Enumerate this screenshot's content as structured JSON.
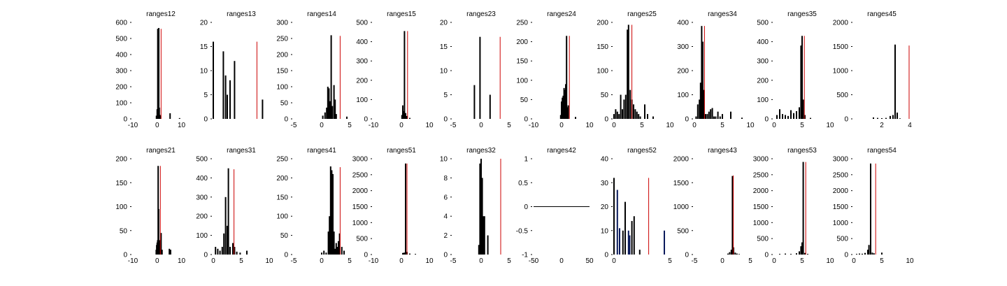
{
  "colors": {
    "bars": "#000000",
    "bars_alt": "#0a1a5c",
    "marker": "#cc0000",
    "axis": "#000000"
  },
  "chart_data": [
    {
      "type": "bar",
      "title": "ranges12",
      "xlim": [
        -10,
        13
      ],
      "ylim": [
        0,
        600
      ],
      "xticks": [
        "-10",
        "0",
        "10"
      ],
      "yticks": [
        "0",
        "100",
        "200",
        "300",
        "400",
        "500",
        "600"
      ],
      "bars": [
        [
          -0.3,
          20
        ],
        [
          0,
          60
        ],
        [
          0.25,
          560
        ],
        [
          0.45,
          475
        ],
        [
          0.65,
          565
        ],
        [
          0.85,
          70
        ],
        [
          1.1,
          25
        ],
        [
          1.4,
          20
        ],
        [
          5.3,
          35
        ],
        [
          9.2,
          5
        ]
      ],
      "marker": 1.6,
      "marker_top": 560
    },
    {
      "type": "bar",
      "title": "ranges13",
      "xlim": [
        0,
        5
      ],
      "ylim": [
        0,
        20
      ],
      "xticks": [],
      "yticks": [
        "0",
        "5",
        "10",
        "15",
        "20"
      ],
      "bars": [
        [
          0,
          16
        ],
        [
          0.9,
          14
        ],
        [
          1.1,
          9
        ],
        [
          1.25,
          5
        ],
        [
          1.5,
          8
        ],
        [
          1.9,
          12
        ],
        [
          4.4,
          4
        ]
      ],
      "marker": 3.9,
      "marker_top": 16
    },
    {
      "type": "bar",
      "title": "ranges14",
      "xlim": [
        -5,
        5
      ],
      "ylim": [
        0,
        300
      ],
      "xticks": [
        "-5",
        "0",
        "5"
      ],
      "yticks": [
        "0",
        "50",
        "100",
        "150",
        "200",
        "250",
        "300"
      ],
      "bars": [
        [
          0.2,
          10
        ],
        [
          0.6,
          20
        ],
        [
          0.9,
          35
        ],
        [
          1.1,
          100
        ],
        [
          1.3,
          95
        ],
        [
          1.5,
          55
        ],
        [
          1.7,
          260
        ],
        [
          1.9,
          40
        ],
        [
          2.2,
          105
        ],
        [
          2.4,
          60
        ],
        [
          2.6,
          15
        ],
        [
          4.5,
          7
        ]
      ],
      "marker": 3.3,
      "marker_top": 258
    },
    {
      "type": "bar",
      "title": "ranges15",
      "xlim": [
        -10,
        10
      ],
      "ylim": [
        0,
        500
      ],
      "xticks": [
        "-10",
        "0",
        "10"
      ],
      "yticks": [
        "0",
        "100",
        "200",
        "300",
        "400",
        "500"
      ],
      "bars": [
        [
          0.2,
          20
        ],
        [
          0.5,
          70
        ],
        [
          0.8,
          40
        ],
        [
          1.1,
          455
        ],
        [
          1.5,
          30
        ],
        [
          2,
          15
        ],
        [
          3,
          5
        ]
      ],
      "marker": 2.2,
      "marker_top": 455
    },
    {
      "type": "bar",
      "title": "ranges23",
      "xlim": [
        -5,
        5
      ],
      "ylim": [
        0,
        20
      ],
      "xticks": [
        "-5",
        "0",
        "5"
      ],
      "yticks": [
        "0",
        "5",
        "10",
        "15",
        "20"
      ],
      "bars": [
        [
          -1.2,
          7
        ],
        [
          -0.2,
          17
        ],
        [
          1.6,
          5
        ]
      ],
      "marker": 3.4,
      "marker_top": 17
    },
    {
      "type": "bar",
      "title": "ranges24",
      "xlim": [
        -10,
        10
      ],
      "ylim": [
        0,
        250
      ],
      "xticks": [
        "-10",
        "0",
        "10"
      ],
      "yticks": [
        "0",
        "50",
        "100",
        "150",
        "200",
        "250"
      ],
      "bars": [
        [
          -0.3,
          10
        ],
        [
          0,
          45
        ],
        [
          0.3,
          55
        ],
        [
          0.6,
          60
        ],
        [
          0.9,
          80
        ],
        [
          1.2,
          75
        ],
        [
          1.5,
          90
        ],
        [
          1.8,
          215
        ],
        [
          2.1,
          30
        ],
        [
          2.4,
          35
        ],
        [
          5,
          5
        ]
      ],
      "marker": 2.8,
      "marker_top": 215
    },
    {
      "type": "bar",
      "title": "ranges25",
      "xlim": [
        0,
        10
      ],
      "ylim": [
        0,
        200
      ],
      "xticks": [
        "0",
        "5",
        "10"
      ],
      "yticks": [
        "0",
        "50",
        "100",
        "150",
        "200"
      ],
      "bars": [
        [
          0,
          10
        ],
        [
          0.3,
          20
        ],
        [
          0.6,
          15
        ],
        [
          0.9,
          10
        ],
        [
          1.2,
          50
        ],
        [
          1.5,
          20
        ],
        [
          1.8,
          40
        ],
        [
          2.1,
          50
        ],
        [
          2.4,
          185
        ],
        [
          2.6,
          195
        ],
        [
          2.9,
          60
        ],
        [
          3.2,
          40
        ],
        [
          3.5,
          30
        ],
        [
          3.8,
          20
        ],
        [
          4.1,
          15
        ],
        [
          4.4,
          10
        ],
        [
          4.7,
          5
        ],
        [
          5.5,
          30
        ],
        [
          6,
          10
        ],
        [
          7,
          5
        ]
      ],
      "marker": 3.2,
      "marker_top": 195
    },
    {
      "type": "bar",
      "title": "ranges34",
      "xlim": [
        0,
        10
      ],
      "ylim": [
        0,
        400
      ],
      "xticks": [
        "0",
        "5",
        "10"
      ],
      "yticks": [
        "0",
        "100",
        "200",
        "300",
        "400"
      ],
      "bars": [
        [
          0.3,
          10
        ],
        [
          0.6,
          60
        ],
        [
          0.9,
          80
        ],
        [
          1.1,
          150
        ],
        [
          1.3,
          385
        ],
        [
          1.5,
          320
        ],
        [
          1.7,
          120
        ],
        [
          2,
          20
        ],
        [
          2.3,
          20
        ],
        [
          2.6,
          30
        ],
        [
          2.9,
          40
        ],
        [
          3.2,
          45
        ],
        [
          3.5,
          10
        ],
        [
          3.8,
          10
        ],
        [
          4.2,
          30
        ],
        [
          4.6,
          10
        ],
        [
          5,
          20
        ],
        [
          6.5,
          30
        ],
        [
          8.5,
          5
        ]
      ],
      "marker": 1.8,
      "marker_top": 385
    },
    {
      "type": "bar",
      "title": "ranges35",
      "xlim": [
        0,
        10
      ],
      "ylim": [
        0,
        500
      ],
      "xticks": [
        "0",
        "5",
        "10"
      ],
      "yticks": [
        "0",
        "100",
        "200",
        "300",
        "400",
        "500"
      ],
      "bars": [
        [
          0.5,
          20
        ],
        [
          1,
          50
        ],
        [
          1.5,
          25
        ],
        [
          2,
          20
        ],
        [
          2.5,
          15
        ],
        [
          3,
          45
        ],
        [
          3.5,
          30
        ],
        [
          4,
          40
        ],
        [
          4.5,
          60
        ],
        [
          4.8,
          380
        ],
        [
          5,
          430
        ],
        [
          5.2,
          100
        ],
        [
          5.5,
          20
        ],
        [
          6.5,
          5
        ]
      ],
      "marker": 5.4,
      "marker_top": 430
    },
    {
      "type": "bar",
      "title": "ranges45",
      "xlim": [
        0,
        4
      ],
      "ylim": [
        0,
        2000
      ],
      "xticks": [
        "2",
        "4"
      ],
      "yticks": [
        "0",
        "500",
        "1000",
        "1500",
        "2000"
      ],
      "bars": [
        [
          1.4,
          30
        ],
        [
          1.7,
          20
        ],
        [
          2,
          15
        ],
        [
          2.3,
          20
        ],
        [
          2.6,
          60
        ],
        [
          2.8,
          80
        ],
        [
          2.95,
          1540
        ],
        [
          3.1,
          130
        ],
        [
          3.3,
          10
        ]
      ],
      "marker": 3.95,
      "marker_top": 1520
    },
    {
      "type": "bar",
      "title": "ranges21",
      "xlim": [
        -10,
        13
      ],
      "ylim": [
        0,
        200
      ],
      "xticks": [
        "-10",
        "0",
        "10"
      ],
      "yticks": [
        "0",
        "50",
        "100",
        "150",
        "200"
      ],
      "bars": [
        [
          -0.4,
          10
        ],
        [
          -0.2,
          20
        ],
        [
          0,
          25
        ],
        [
          0.2,
          30
        ],
        [
          0.4,
          185
        ],
        [
          0.6,
          95
        ],
        [
          0.8,
          25
        ],
        [
          1,
          30
        ],
        [
          1.3,
          15
        ],
        [
          1.6,
          45
        ],
        [
          2,
          10
        ],
        [
          5,
          12
        ],
        [
          5.5,
          10
        ]
      ],
      "marker": 1.3,
      "marker_top": 185
    },
    {
      "type": "bar",
      "title": "ranges31",
      "xlim": [
        0,
        10
      ],
      "ylim": [
        0,
        500
      ],
      "xticks": [
        "0",
        "5",
        "10"
      ],
      "yticks": [
        "0",
        "100",
        "200",
        "300",
        "400",
        "500"
      ],
      "bars": [
        [
          0.4,
          40
        ],
        [
          0.8,
          30
        ],
        [
          1.2,
          20
        ],
        [
          1.6,
          40
        ],
        [
          1.9,
          110
        ],
        [
          2.2,
          300
        ],
        [
          2.5,
          150
        ],
        [
          2.7,
          450
        ],
        [
          3,
          40
        ],
        [
          3.5,
          60
        ],
        [
          3.8,
          40
        ],
        [
          4.2,
          15
        ],
        [
          4.8,
          10
        ],
        [
          6,
          20
        ]
      ],
      "marker": 3.7,
      "marker_top": 445
    },
    {
      "type": "bar",
      "title": "ranges41",
      "xlim": [
        -5,
        5
      ],
      "ylim": [
        0,
        250
      ],
      "xticks": [
        "-5",
        "0",
        "5"
      ],
      "yticks": [
        "0",
        "50",
        "100",
        "150",
        "200",
        "250"
      ],
      "bars": [
        [
          0,
          5
        ],
        [
          0.4,
          10
        ],
        [
          0.8,
          5
        ],
        [
          1.2,
          60
        ],
        [
          1.4,
          100
        ],
        [
          1.6,
          230
        ],
        [
          1.8,
          220
        ],
        [
          2,
          210
        ],
        [
          2.2,
          60
        ],
        [
          2.4,
          15
        ],
        [
          2.6,
          30
        ],
        [
          2.8,
          20
        ],
        [
          3,
          35
        ],
        [
          3.2,
          55
        ],
        [
          3.6,
          20
        ],
        [
          4,
          10
        ]
      ],
      "marker": 3.3,
      "marker_top": 228
    },
    {
      "type": "bar",
      "title": "ranges51",
      "xlim": [
        -10,
        10
      ],
      "ylim": [
        0,
        3000
      ],
      "xticks": [
        "-10",
        "0",
        "10"
      ],
      "yticks": [
        "0",
        "500",
        "1000",
        "1500",
        "2000",
        "2500",
        "3000"
      ],
      "bars": [
        [
          0.5,
          50
        ],
        [
          1,
          60
        ],
        [
          1.5,
          2850
        ],
        [
          2,
          80
        ],
        [
          3,
          30
        ],
        [
          5,
          20
        ]
      ],
      "marker": 2,
      "marker_top": 2850
    },
    {
      "type": "bar",
      "title": "ranges32",
      "xlim": [
        -5,
        5
      ],
      "ylim": [
        0,
        10
      ],
      "xticks": [
        "-5",
        "0",
        "5"
      ],
      "yticks": [
        "0",
        "2",
        "4",
        "6",
        "8",
        "10"
      ],
      "bars": [
        [
          -0.4,
          1
        ],
        [
          -0.2,
          9.5
        ],
        [
          0,
          10
        ],
        [
          0.2,
          8
        ],
        [
          0.4,
          4
        ],
        [
          0.6,
          4
        ],
        [
          1.2,
          2
        ]
      ],
      "marker": 3.5,
      "marker_top": 10
    },
    {
      "type": "line",
      "title": "ranges42",
      "xlim": [
        -50,
        50
      ],
      "ylim": [
        -1,
        1
      ],
      "xticks": [
        "-50",
        "0",
        "50"
      ],
      "yticks": [
        "-1",
        "-0.5",
        "0",
        "0.5",
        "1"
      ],
      "x": [
        -50,
        50
      ],
      "y": [
        0,
        0
      ]
    },
    {
      "type": "bar",
      "title": "ranges52",
      "xlim": [
        0,
        5
      ],
      "ylim": [
        0,
        40
      ],
      "xticks": [
        "0",
        "5"
      ],
      "yticks": [
        "0",
        "10",
        "20",
        "30",
        "40"
      ],
      "bars": [
        [
          0,
          32
        ],
        [
          0.3,
          27
        ],
        [
          0.5,
          11
        ],
        [
          0.8,
          10
        ],
        [
          1,
          22
        ],
        [
          1.3,
          10
        ],
        [
          1.4,
          8
        ],
        [
          1.6,
          14
        ],
        [
          1.8,
          16
        ],
        [
          2.3,
          2
        ],
        [
          4.5,
          10
        ]
      ],
      "alt_bars": [
        1,
        2,
        5,
        6,
        10
      ],
      "marker": 3.1,
      "marker_top": 32
    },
    {
      "type": "bar",
      "title": "ranges43",
      "xlim": [
        -5,
        5
      ],
      "ylim": [
        0,
        2000
      ],
      "xticks": [
        "-5",
        "0",
        "5"
      ],
      "yticks": [
        "0",
        "500",
        "1000",
        "1500",
        "2000"
      ],
      "bars": [
        [
          1,
          20
        ],
        [
          1.3,
          50
        ],
        [
          1.6,
          100
        ],
        [
          1.8,
          1640
        ],
        [
          2,
          150
        ],
        [
          2.3,
          40
        ],
        [
          2.6,
          20
        ],
        [
          3,
          10
        ]
      ],
      "marker": 1.95,
      "marker_top": 1650
    },
    {
      "type": "bar",
      "title": "ranges53",
      "xlim": [
        0,
        10
      ],
      "ylim": [
        0,
        3000
      ],
      "xticks": [
        "0",
        "5",
        "10"
      ],
      "yticks": [
        "0",
        "500",
        "1000",
        "1500",
        "2000",
        "2500",
        "3000"
      ],
      "bars": [
        [
          1,
          20
        ],
        [
          2,
          30
        ],
        [
          3,
          20
        ],
        [
          4,
          40
        ],
        [
          4.5,
          100
        ],
        [
          4.8,
          260
        ],
        [
          5,
          380
        ],
        [
          5.2,
          2900
        ],
        [
          5.5,
          50
        ],
        [
          6,
          20
        ]
      ],
      "marker": 5.65,
      "marker_top": 2900
    },
    {
      "type": "bar",
      "title": "ranges54",
      "xlim": [
        0,
        10
      ],
      "ylim": [
        0,
        3000
      ],
      "xticks": [
        "0",
        "5",
        "10"
      ],
      "yticks": [
        "0",
        "500",
        "1000",
        "1500",
        "2000",
        "2500",
        "3000"
      ],
      "bars": [
        [
          0.5,
          20
        ],
        [
          1,
          30
        ],
        [
          1.5,
          25
        ],
        [
          2,
          50
        ],
        [
          2.5,
          150
        ],
        [
          2.7,
          300
        ],
        [
          3,
          2850
        ],
        [
          3.3,
          60
        ],
        [
          3.6,
          40
        ],
        [
          5,
          60
        ]
      ],
      "marker": 3.9,
      "marker_top": 2850
    }
  ]
}
